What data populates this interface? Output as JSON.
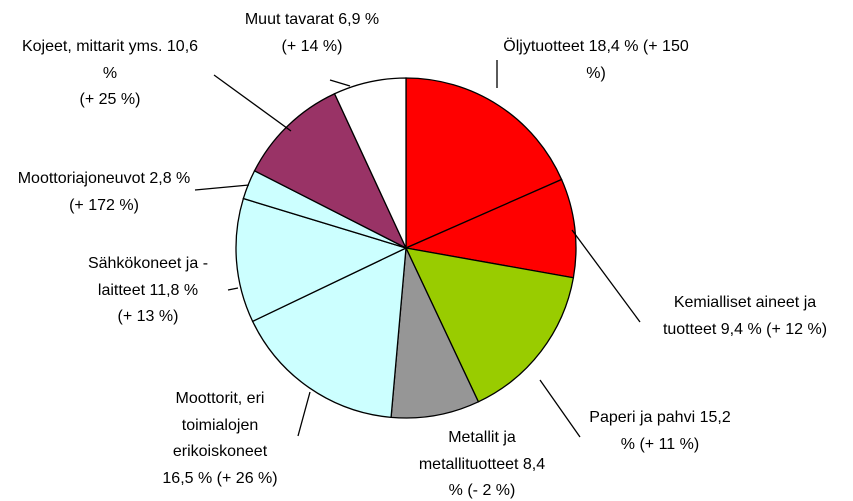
{
  "chart_data": {
    "type": "pie",
    "categories": [
      "Öljytuotteet",
      "Kemialliset aineet ja tuotteet",
      "Paperi ja pahvi",
      "Metallit ja metallituotteet",
      "Moottorit, eri toimialojen erikoiskoneet",
      "Sähkökoneet ja -laitteet",
      "Moottoriajoneuvot",
      "Kojeet, mittarit yms.",
      "Muut tavarat"
    ],
    "values": [
      18.4,
      9.4,
      15.2,
      8.4,
      16.5,
      11.8,
      2.8,
      10.6,
      6.9
    ],
    "value_labels": [
      "18,4 %",
      "9,4 %",
      "15,2 %",
      "8,4 %",
      "16,5 %",
      "11,8 %",
      "2,8 %",
      "10,6 %",
      "6,9 %"
    ],
    "changes": [
      "(+ 150 %)",
      "(+ 12 %)",
      "(+ 11 %)",
      "(- 2 %)",
      "(+ 26 %)",
      "(+ 13 %)",
      "(+ 172 %)",
      "(+ 25 %)",
      "(+ 14 %)"
    ],
    "colors": [
      "#ff0000",
      "#ff0000",
      "#99cc00",
      "#969696",
      "#ccffff",
      "#ccffff",
      "#ccffff",
      "#993366",
      "#ffffff"
    ]
  }
}
